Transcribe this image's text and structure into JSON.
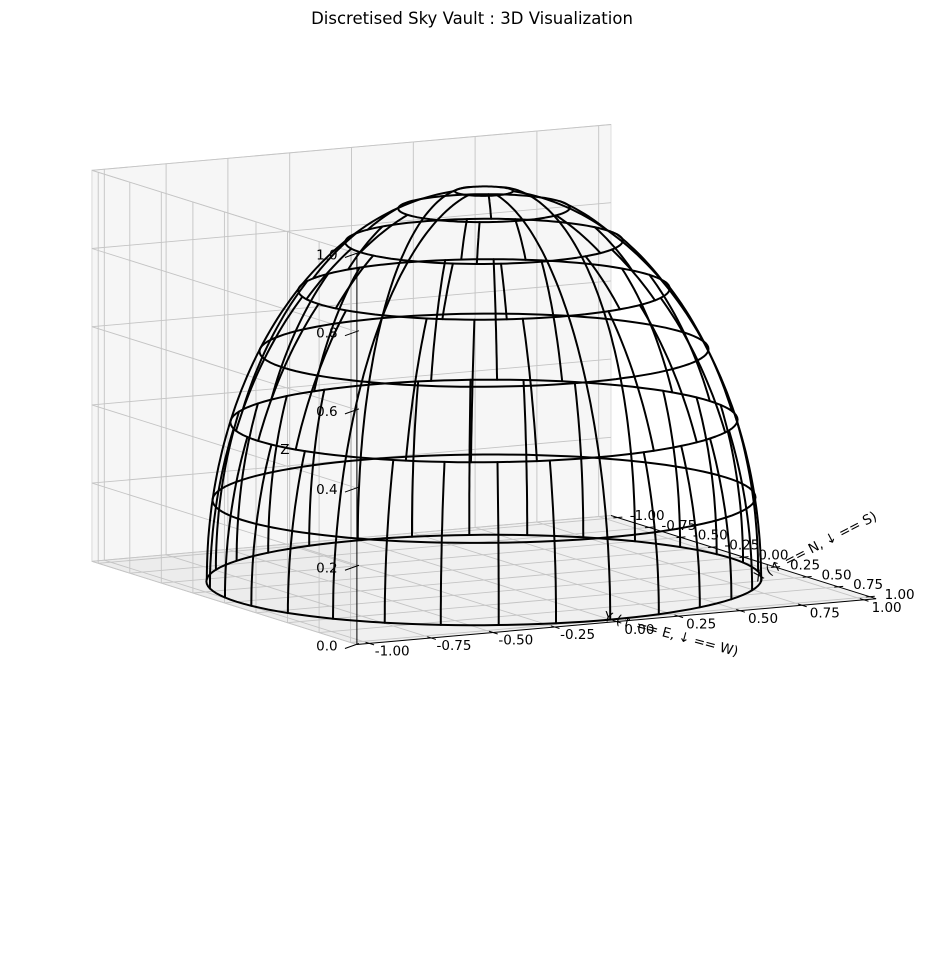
{
  "chart_data": {
    "type": "wireframe-3d",
    "title": "Discretised Sky Vault : 3D Visualization",
    "xlabel": "X (↑ == N, ↓ == S)",
    "ylabel": "Y (↑ == E, ↓ == W)",
    "zlabel": "Z",
    "xlim": [
      -1.05,
      1.05
    ],
    "ylim": [
      -1.05,
      1.05
    ],
    "zlim": [
      0,
      1.0
    ],
    "x_ticks": [
      "-1.00",
      "-0.75",
      "-0.50",
      "-0.25",
      "0.00",
      "0.25",
      "0.50",
      "0.75",
      "1.00"
    ],
    "y_ticks": [
      "-1.00",
      "-0.75",
      "-0.50",
      "-0.25",
      "0.00",
      "0.25",
      "0.50",
      "0.75",
      "1.00"
    ],
    "z_ticks": [
      "0.0",
      "0.2",
      "0.4",
      "0.6",
      "0.8",
      "1.0"
    ],
    "grid": true,
    "wire_color": "#000000",
    "view_elevation_deg": 30,
    "view_azimuth_deg": -60,
    "altitude_bands_deg": [
      {
        "from": 0,
        "to": 12,
        "azimuth_divisions": 30
      },
      {
        "from": 12,
        "to": 24,
        "azimuth_divisions": 30
      },
      {
        "from": 24,
        "to": 36,
        "azimuth_divisions": 24
      },
      {
        "from": 36,
        "to": 48,
        "azimuth_divisions": 24
      },
      {
        "from": 48,
        "to": 60,
        "azimuth_divisions": 18
      },
      {
        "from": 60,
        "to": 72,
        "azimuth_divisions": 12
      },
      {
        "from": 72,
        "to": 84,
        "azimuth_divisions": 6
      },
      {
        "from": 84,
        "to": 90,
        "azimuth_divisions": 1
      }
    ]
  }
}
